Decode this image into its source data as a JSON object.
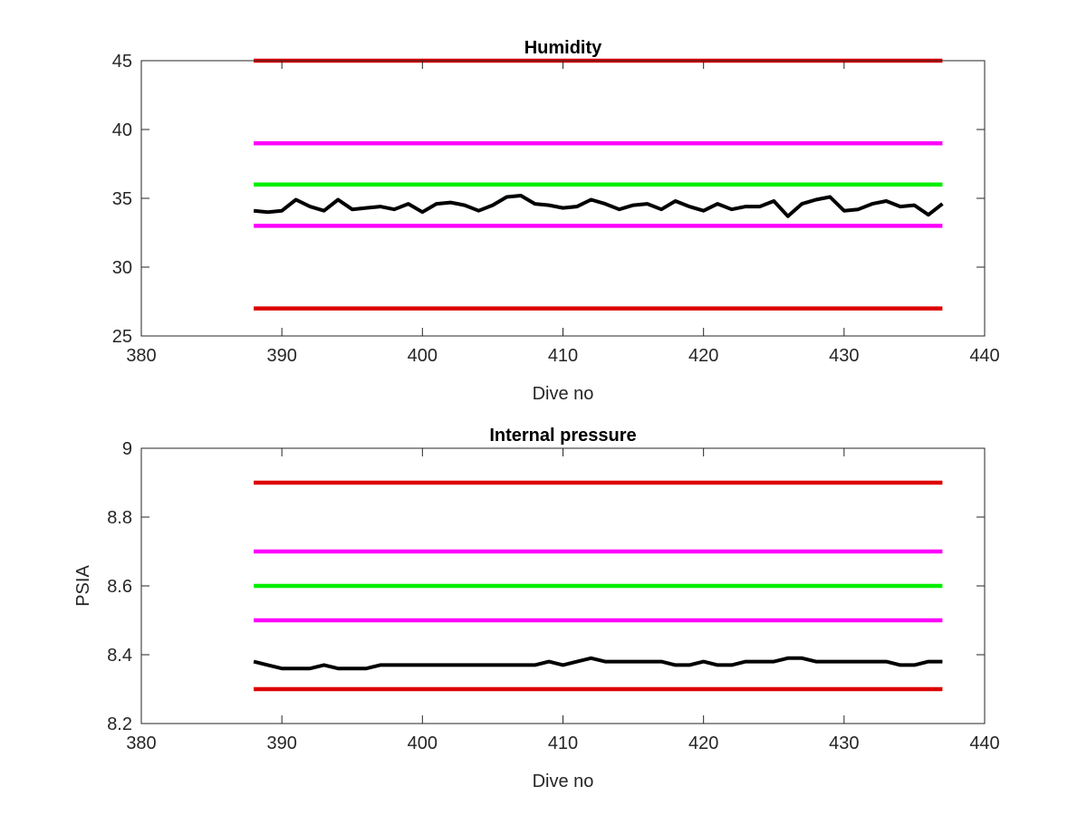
{
  "colors": {
    "data_line": "#000000",
    "red_limit": "#dd0000",
    "magenta_limit": "#ff00ff",
    "green_limit": "#00ee00",
    "axes": "#262626"
  },
  "chart_data": [
    {
      "type": "line",
      "title": "Humidity",
      "xlabel": "Dive no",
      "ylabel": "",
      "xlim": [
        380,
        440
      ],
      "ylim": [
        25,
        45
      ],
      "xticks": [
        380,
        390,
        400,
        410,
        420,
        430,
        440
      ],
      "yticks": [
        25,
        30,
        35,
        40,
        45
      ],
      "grid": false,
      "series": [
        {
          "color": "red_limit",
          "x": [
            388,
            437
          ],
          "values": [
            45,
            45
          ]
        },
        {
          "color": "magenta_limit",
          "x": [
            388,
            437
          ],
          "values": [
            39,
            39
          ]
        },
        {
          "color": "green_limit",
          "x": [
            388,
            437
          ],
          "values": [
            36,
            36
          ]
        },
        {
          "color": "magenta_limit",
          "x": [
            388,
            437
          ],
          "values": [
            33,
            33
          ]
        },
        {
          "color": "red_limit",
          "x": [
            388,
            437
          ],
          "values": [
            27,
            27
          ]
        },
        {
          "color": "data_line",
          "x": [
            388,
            389,
            390,
            391,
            392,
            393,
            394,
            395,
            396,
            397,
            398,
            399,
            400,
            401,
            402,
            403,
            404,
            405,
            406,
            407,
            408,
            409,
            410,
            411,
            412,
            413,
            414,
            415,
            416,
            417,
            418,
            419,
            420,
            421,
            422,
            423,
            424,
            425,
            426,
            427,
            428,
            429,
            430,
            431,
            432,
            433,
            434,
            435,
            436,
            437
          ],
          "values": [
            34.1,
            34.0,
            34.1,
            34.9,
            34.4,
            34.1,
            34.9,
            34.2,
            34.3,
            34.4,
            34.2,
            34.6,
            34.0,
            34.6,
            34.7,
            34.5,
            34.1,
            34.5,
            35.1,
            35.2,
            34.6,
            34.5,
            34.3,
            34.4,
            34.9,
            34.6,
            34.2,
            34.5,
            34.6,
            34.2,
            34.8,
            34.4,
            34.1,
            34.6,
            34.2,
            34.4,
            34.4,
            34.8,
            33.7,
            34.6,
            34.9,
            35.1,
            34.1,
            34.2,
            34.6,
            34.8,
            34.4,
            34.5,
            33.8,
            34.6
          ]
        }
      ]
    },
    {
      "type": "line",
      "title": "Internal pressure",
      "xlabel": "Dive no",
      "ylabel": "PSIA",
      "xlim": [
        380,
        440
      ],
      "ylim": [
        8.2,
        9.0
      ],
      "xticks": [
        380,
        390,
        400,
        410,
        420,
        430,
        440
      ],
      "yticks": [
        8.2,
        8.4,
        8.6,
        8.8,
        9
      ],
      "ytick_labels": [
        "8.2",
        "8.4",
        "8.6",
        "8.8",
        "9"
      ],
      "grid": false,
      "series": [
        {
          "color": "red_limit",
          "x": [
            388,
            437
          ],
          "values": [
            8.9,
            8.9
          ]
        },
        {
          "color": "magenta_limit",
          "x": [
            388,
            437
          ],
          "values": [
            8.7,
            8.7
          ]
        },
        {
          "color": "green_limit",
          "x": [
            388,
            437
          ],
          "values": [
            8.6,
            8.6
          ]
        },
        {
          "color": "magenta_limit",
          "x": [
            388,
            437
          ],
          "values": [
            8.5,
            8.5
          ]
        },
        {
          "color": "red_limit",
          "x": [
            388,
            437
          ],
          "values": [
            8.3,
            8.3
          ]
        },
        {
          "color": "data_line",
          "x": [
            388,
            389,
            390,
            391,
            392,
            393,
            394,
            395,
            396,
            397,
            398,
            399,
            400,
            401,
            402,
            403,
            404,
            405,
            406,
            407,
            408,
            409,
            410,
            411,
            412,
            413,
            414,
            415,
            416,
            417,
            418,
            419,
            420,
            421,
            422,
            423,
            424,
            425,
            426,
            427,
            428,
            429,
            430,
            431,
            432,
            433,
            434,
            435,
            436,
            437
          ],
          "values": [
            8.38,
            8.37,
            8.36,
            8.36,
            8.36,
            8.37,
            8.36,
            8.36,
            8.36,
            8.37,
            8.37,
            8.37,
            8.37,
            8.37,
            8.37,
            8.37,
            8.37,
            8.37,
            8.37,
            8.37,
            8.37,
            8.38,
            8.37,
            8.38,
            8.39,
            8.38,
            8.38,
            8.38,
            8.38,
            8.38,
            8.37,
            8.37,
            8.38,
            8.37,
            8.37,
            8.38,
            8.38,
            8.38,
            8.39,
            8.39,
            8.38,
            8.38,
            8.38,
            8.38,
            8.38,
            8.38,
            8.37,
            8.37,
            8.38,
            8.38
          ]
        }
      ]
    }
  ]
}
